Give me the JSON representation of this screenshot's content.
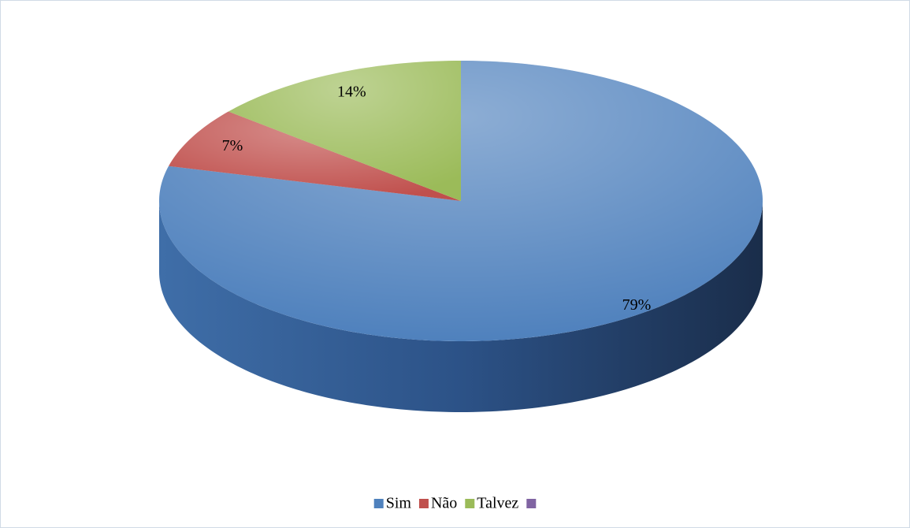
{
  "chart_data": {
    "type": "pie",
    "categories": [
      "Sim",
      "Não",
      "Talvez",
      null
    ],
    "values": [
      79,
      7,
      14,
      0
    ],
    "value_labels": [
      "79%",
      "7%",
      "14%",
      null
    ],
    "colors": [
      "#4f81bd",
      "#c0504d",
      "#9bbb59",
      "#8064a2"
    ],
    "legend": "bottom"
  }
}
